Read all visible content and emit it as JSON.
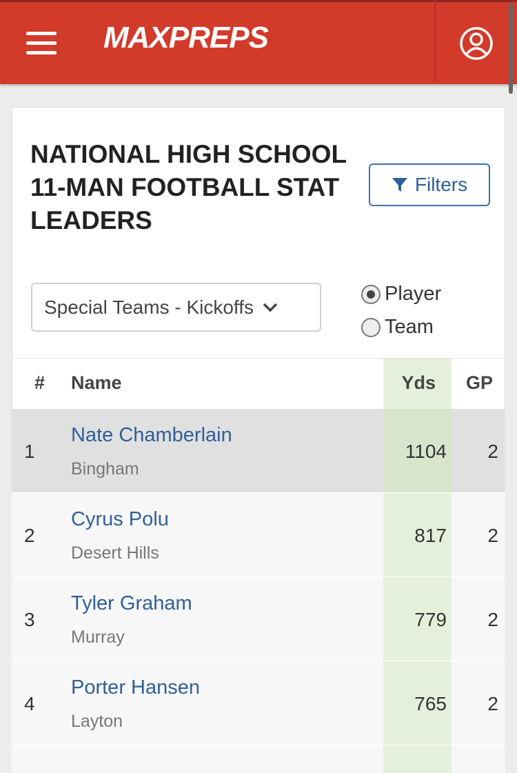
{
  "header": {
    "logo": "MAXPREPS"
  },
  "title": "NATIONAL HIGH SCHOOL 11-MAN FOOTBALL STAT LEADERS",
  "filters_button": "Filters",
  "stat_select": "Special Teams - Kickoffs",
  "view_options": [
    "Player",
    "Team"
  ],
  "table": {
    "columns": [
      "#",
      "Name",
      "Yds",
      "GP"
    ],
    "rows": [
      {
        "rank": "1",
        "name": "Nate Chamberlain",
        "school": "Bingham",
        "yds": "1104",
        "gp": "2"
      },
      {
        "rank": "2",
        "name": "Cyrus Polu",
        "school": "Desert Hills",
        "yds": "817",
        "gp": "2"
      },
      {
        "rank": "3",
        "name": "Tyler Graham",
        "school": "Murray",
        "yds": "779",
        "gp": "2"
      },
      {
        "rank": "4",
        "name": "Porter Hansen",
        "school": "Layton",
        "yds": "765",
        "gp": "2"
      }
    ]
  }
}
